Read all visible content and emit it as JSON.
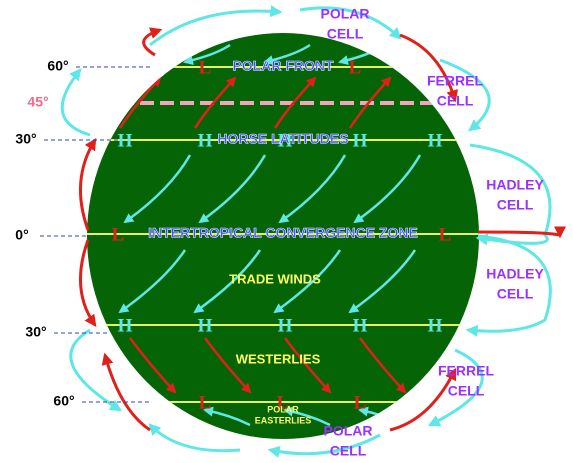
{
  "cells": [
    {
      "lines": [
        "POLAR",
        "CELL"
      ]
    },
    {
      "lines": [
        "FERREL",
        "CELL"
      ]
    },
    {
      "lines": [
        "HADLEY",
        "CELL"
      ]
    },
    {
      "lines": [
        "HADLEY",
        "CELL"
      ]
    },
    {
      "lines": [
        "FERREL",
        "CELL"
      ]
    },
    {
      "lines": [
        "POLAR",
        "CELL"
      ]
    }
  ],
  "latitude_labels": [
    "60°",
    "45°",
    "30°",
    "0°",
    "30°",
    "60°"
  ],
  "pressure_lines": [
    {
      "label": "POLAR FRONT",
      "markers": [
        "L",
        "L"
      ]
    },
    {
      "label": "HORSE LATITUDES",
      "markers": [
        "H",
        "H",
        "H",
        "H",
        "H"
      ]
    },
    {
      "label": "INTERTROPICAL CONVERGENCE ZONE",
      "markers": [
        "L",
        "L"
      ]
    },
    {
      "markers": [
        "H",
        "H",
        "H",
        "H",
        "H"
      ]
    },
    {
      "markers": [
        "L",
        "L",
        "L"
      ]
    }
  ],
  "wind_labels": [
    {
      "lines": [
        "TRADE WINDS"
      ]
    },
    {
      "lines": [
        "WESTERLIES"
      ]
    },
    {
      "lines": [
        "POLAR",
        "EASTERLIES"
      ]
    }
  ]
}
